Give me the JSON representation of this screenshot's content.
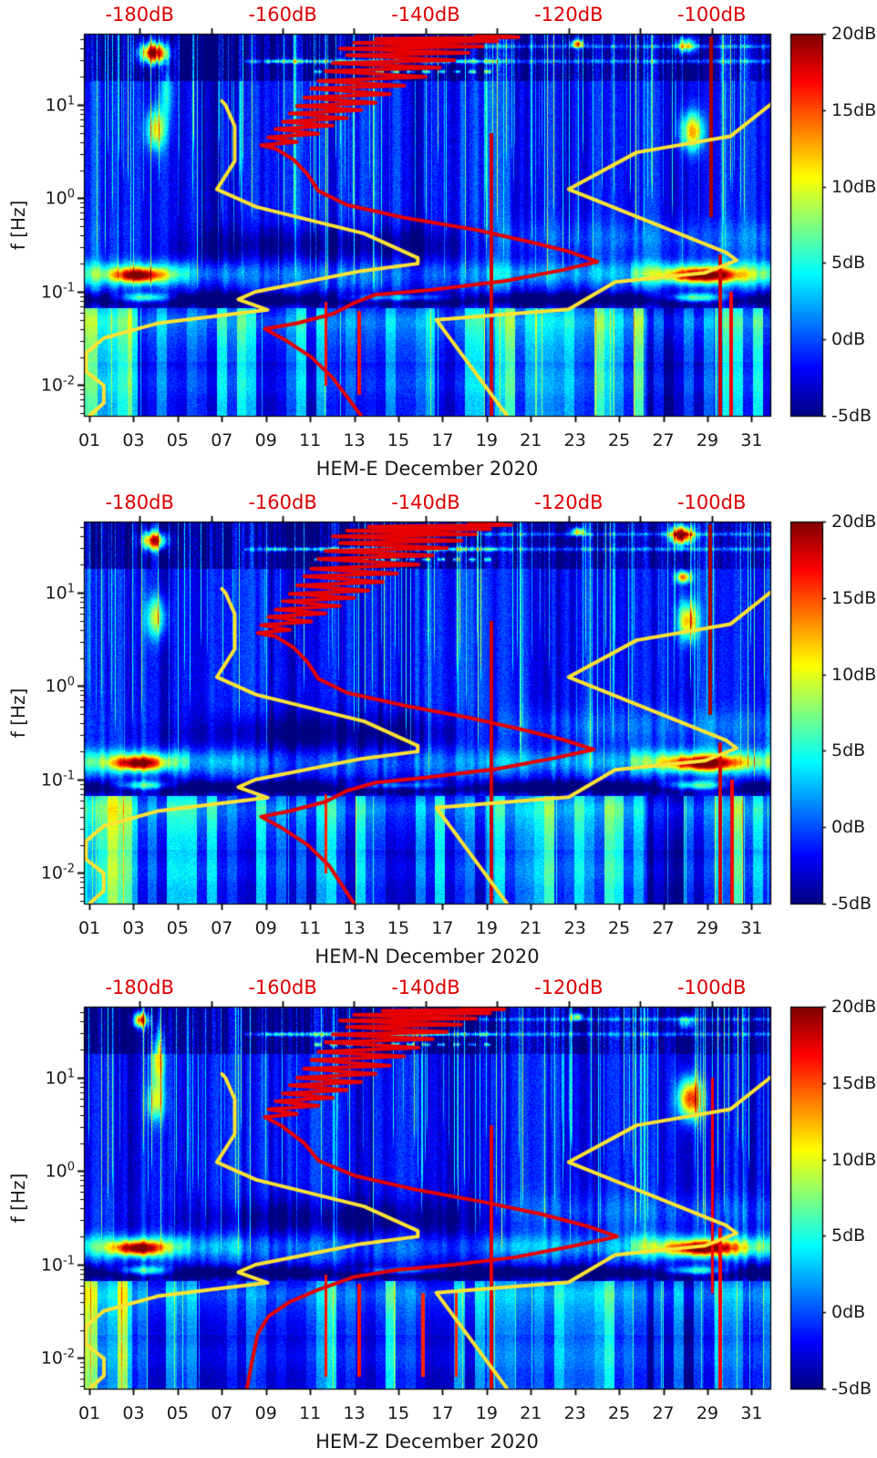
{
  "page": {
    "background": "#ffffff"
  },
  "chart_data": {
    "type": "heatmap",
    "subtype": "spectrogram-with-noise-model-overlays",
    "palette": "jet",
    "x_axis": {
      "tick_labels": [
        "01",
        "03",
        "05",
        "07",
        "09",
        "11",
        "13",
        "15",
        "17",
        "19",
        "21",
        "23",
        "25",
        "27",
        "29",
        "31"
      ],
      "tick_days": [
        1,
        3,
        5,
        7,
        9,
        11,
        13,
        15,
        17,
        19,
        21,
        23,
        25,
        27,
        29,
        31
      ],
      "domain_days": [
        0.75,
        31.85
      ]
    },
    "y_axis": {
      "label": "f [Hz]",
      "scale": "log",
      "domain_hz": [
        0.0047,
        57.7
      ],
      "decade_labels": [
        {
          "base": "10",
          "exp": "1",
          "log": 1
        },
        {
          "base": "10",
          "exp": "0",
          "log": 0
        },
        {
          "base": "10",
          "exp": "-1",
          "log": -1
        },
        {
          "base": "10",
          "exp": "-2",
          "log": -2
        }
      ]
    },
    "top_axis": {
      "labels": [
        "-180dB",
        "-160dB",
        "-140dB",
        "-120dB",
        "-100dB"
      ],
      "values": [
        -180,
        -160,
        -140,
        -120,
        -100
      ],
      "minor_tick_step_db": 10,
      "domain_db": [
        -187.8,
        -91.8
      ],
      "color": "#dd0000"
    },
    "colorbar": {
      "labels": [
        "20dB",
        "15dB",
        "10dB",
        "5dB",
        "0dB",
        "-5dB"
      ],
      "values": [
        20,
        15,
        10,
        5,
        0,
        -5
      ],
      "domain_db": [
        -5,
        20
      ]
    },
    "colors": {
      "median_curve": "#e60000",
      "reference_curves": "#fde334",
      "tick_text": "#1a1a1a",
      "top_axis_text": "#dd0000"
    },
    "reference_curves": {
      "nlnm_f_db": [
        [
          11,
          -168.5
        ],
        [
          10,
          -168
        ],
        [
          5.9,
          -166.7
        ],
        [
          2.5,
          -166.7
        ],
        [
          1.25,
          -169.2
        ],
        [
          0.81,
          -163.7
        ],
        [
          0.42,
          -148.6
        ],
        [
          0.23,
          -141.1
        ],
        [
          0.2,
          -141.1
        ],
        [
          0.167,
          -149
        ],
        [
          0.1,
          -163.8
        ],
        [
          0.083,
          -166.2
        ],
        [
          0.064,
          -162.1
        ],
        [
          0.046,
          -177.5
        ],
        [
          0.032,
          -185
        ],
        [
          0.022,
          -187.5
        ],
        [
          0.014,
          -187.5
        ],
        [
          0.0099,
          -185
        ],
        [
          0.0065,
          -185
        ],
        [
          0.0047,
          -187
        ]
      ],
      "nhnm_f_db": [
        [
          10.5,
          -91.5
        ],
        [
          4.6,
          -97.4
        ],
        [
          3.1,
          -110.5
        ],
        [
          1.25,
          -120
        ],
        [
          0.263,
          -98
        ],
        [
          0.217,
          -96.5
        ],
        [
          0.159,
          -101
        ],
        [
          0.127,
          -113.5
        ],
        [
          0.065,
          -120
        ],
        [
          0.05,
          -138.5
        ],
        [
          0.0047,
          -128.6
        ]
      ]
    },
    "panels": [
      {
        "title": "HEM-E December 2020",
        "seed": 11,
        "median_psd_f_db": [
          [
            57,
            -133
          ],
          [
            53,
            -127
          ],
          [
            51,
            -147
          ],
          [
            48,
            -130
          ],
          [
            46,
            -150
          ],
          [
            42,
            -132
          ],
          [
            40,
            -152
          ],
          [
            36,
            -134
          ],
          [
            34,
            -151
          ],
          [
            30,
            -136
          ],
          [
            28,
            -153
          ],
          [
            25,
            -138
          ],
          [
            23,
            -154
          ],
          [
            20,
            -140
          ],
          [
            18,
            -155
          ],
          [
            16,
            -143
          ],
          [
            15,
            -156
          ],
          [
            13,
            -145
          ],
          [
            12,
            -157
          ],
          [
            10.5,
            -147
          ],
          [
            9.7,
            -158
          ],
          [
            8.8,
            -149
          ],
          [
            8.1,
            -159
          ],
          [
            7.2,
            -151
          ],
          [
            6.6,
            -160
          ],
          [
            6.0,
            -153
          ],
          [
            5.5,
            -161
          ],
          [
            4.9,
            -155
          ],
          [
            4.5,
            -162
          ],
          [
            4.0,
            -158
          ],
          [
            3.7,
            -163
          ],
          [
            3.4,
            -161
          ],
          [
            2.6,
            -158.5
          ],
          [
            1.8,
            -156.5
          ],
          [
            1.2,
            -155
          ],
          [
            0.85,
            -151
          ],
          [
            0.62,
            -143
          ],
          [
            0.46,
            -133
          ],
          [
            0.35,
            -126
          ],
          [
            0.27,
            -120
          ],
          [
            0.21,
            -116
          ],
          [
            0.17,
            -121
          ],
          [
            0.13,
            -129
          ],
          [
            0.105,
            -139
          ],
          [
            0.093,
            -147
          ],
          [
            0.076,
            -150
          ],
          [
            0.058,
            -153
          ],
          [
            0.046,
            -158
          ],
          [
            0.04,
            -162.5
          ],
          [
            0.03,
            -159.5
          ],
          [
            0.02,
            -156
          ],
          [
            0.012,
            -153
          ],
          [
            0.0047,
            -149
          ]
        ],
        "blobs_day_logf_sd_slf_amp": [
          [
            3.9,
            1.56,
            0.6,
            0.11,
            26
          ],
          [
            4.0,
            0.74,
            0.45,
            0.22,
            12
          ],
          [
            4.5,
            1.15,
            0.3,
            0.3,
            6
          ],
          [
            28.3,
            0.72,
            0.5,
            0.2,
            15
          ],
          [
            28.0,
            1.64,
            0.45,
            0.09,
            15
          ],
          [
            23.1,
            1.66,
            0.3,
            0.04,
            17
          ],
          [
            3.2,
            -0.82,
            1.1,
            0.075,
            17
          ],
          [
            28.8,
            -0.82,
            1.5,
            0.075,
            18
          ],
          [
            3.5,
            -1.06,
            1.2,
            0.05,
            13
          ],
          [
            28.5,
            -1.06,
            1.4,
            0.05,
            14
          ],
          [
            15,
            -1.06,
            2.5,
            0.04,
            9
          ]
        ],
        "red_vlines_day_lf1_lf2_amp": [
          [
            19.2,
            -2.33,
            0.7,
            5
          ],
          [
            29.15,
            -0.2,
            1.74,
            6
          ],
          [
            29.55,
            -2.33,
            -0.6,
            5
          ],
          [
            30.05,
            -2.33,
            -1.0,
            4
          ],
          [
            11.7,
            -2.0,
            -1.1,
            3.5
          ],
          [
            13.2,
            -2.1,
            -1.2,
            3.5
          ]
        ]
      },
      {
        "title": "HEM-N December 2020",
        "seed": 52,
        "median_psd_f_db": [
          [
            57,
            -134
          ],
          [
            53,
            -128
          ],
          [
            51,
            -148
          ],
          [
            48,
            -131
          ],
          [
            46,
            -151
          ],
          [
            42,
            -133
          ],
          [
            40,
            -153
          ],
          [
            36,
            -135
          ],
          [
            34,
            -152
          ],
          [
            30,
            -137
          ],
          [
            28,
            -154
          ],
          [
            25,
            -139
          ],
          [
            23,
            -155
          ],
          [
            20,
            -141
          ],
          [
            18,
            -156
          ],
          [
            16,
            -144
          ],
          [
            15,
            -157
          ],
          [
            13,
            -146
          ],
          [
            12,
            -158
          ],
          [
            10.5,
            -148
          ],
          [
            9.7,
            -159
          ],
          [
            8.8,
            -150
          ],
          [
            8.1,
            -160
          ],
          [
            7.2,
            -152
          ],
          [
            6.6,
            -161
          ],
          [
            6.0,
            -154
          ],
          [
            5.5,
            -162
          ],
          [
            4.9,
            -156
          ],
          [
            4.5,
            -163
          ],
          [
            4.0,
            -159
          ],
          [
            3.7,
            -163.5
          ],
          [
            3.4,
            -161
          ],
          [
            2.6,
            -158.5
          ],
          [
            1.8,
            -156.5
          ],
          [
            1.2,
            -155
          ],
          [
            0.85,
            -151
          ],
          [
            0.62,
            -143
          ],
          [
            0.46,
            -134
          ],
          [
            0.35,
            -127
          ],
          [
            0.27,
            -121
          ],
          [
            0.21,
            -116.5
          ],
          [
            0.17,
            -122
          ],
          [
            0.13,
            -130
          ],
          [
            0.105,
            -140
          ],
          [
            0.093,
            -147
          ],
          [
            0.076,
            -151
          ],
          [
            0.058,
            -154
          ],
          [
            0.046,
            -159
          ],
          [
            0.04,
            -163
          ],
          [
            0.03,
            -160
          ],
          [
            0.02,
            -156.5
          ],
          [
            0.012,
            -153.5
          ],
          [
            0.0047,
            -150
          ]
        ],
        "blobs_day_logf_sd_slf_amp": [
          [
            3.9,
            1.56,
            0.55,
            0.1,
            22
          ],
          [
            4.0,
            0.74,
            0.45,
            0.22,
            11
          ],
          [
            27.8,
            1.62,
            0.5,
            0.1,
            26
          ],
          [
            27.9,
            1.17,
            0.35,
            0.06,
            16
          ],
          [
            28.1,
            0.7,
            0.45,
            0.2,
            15
          ],
          [
            23.1,
            1.66,
            0.3,
            0.04,
            15
          ],
          [
            3.2,
            -0.82,
            1.1,
            0.075,
            17
          ],
          [
            28.8,
            -0.82,
            1.5,
            0.075,
            18
          ],
          [
            3.5,
            -1.06,
            1.2,
            0.05,
            13
          ],
          [
            28.5,
            -1.06,
            1.4,
            0.05,
            13
          ],
          [
            15,
            -1.06,
            2.5,
            0.04,
            8
          ]
        ],
        "red_vlines_day_lf1_lf2_amp": [
          [
            19.2,
            -2.33,
            0.7,
            5
          ],
          [
            29.1,
            -0.3,
            1.74,
            6
          ],
          [
            29.55,
            -2.33,
            -0.6,
            5
          ],
          [
            30.1,
            -2.33,
            -1.0,
            4
          ],
          [
            11.7,
            -2.0,
            -1.15,
            3
          ]
        ]
      },
      {
        "title": "HEM-Z December 2020",
        "seed": 93,
        "median_psd_f_db": [
          [
            57,
            -135
          ],
          [
            54,
            -129
          ],
          [
            52,
            -146
          ],
          [
            49,
            -131
          ],
          [
            47,
            -150
          ],
          [
            43,
            -133
          ],
          [
            41,
            -152
          ],
          [
            37,
            -135
          ],
          [
            35,
            -151
          ],
          [
            31,
            -137
          ],
          [
            29,
            -153
          ],
          [
            26,
            -139
          ],
          [
            24,
            -154
          ],
          [
            21,
            -141
          ],
          [
            19,
            -155
          ],
          [
            17,
            -143
          ],
          [
            15.5,
            -156
          ],
          [
            13.5,
            -145
          ],
          [
            12.5,
            -157
          ],
          [
            11,
            -147
          ],
          [
            10,
            -158
          ],
          [
            9,
            -149
          ],
          [
            8.3,
            -159
          ],
          [
            7.4,
            -151
          ],
          [
            6.8,
            -160
          ],
          [
            6.1,
            -153
          ],
          [
            5.6,
            -161
          ],
          [
            5.0,
            -155
          ],
          [
            4.6,
            -162
          ],
          [
            4.1,
            -158
          ],
          [
            3.8,
            -162.5
          ],
          [
            3.0,
            -160
          ],
          [
            2.0,
            -157
          ],
          [
            1.3,
            -155
          ],
          [
            0.9,
            -150
          ],
          [
            0.65,
            -142
          ],
          [
            0.47,
            -132
          ],
          [
            0.35,
            -124
          ],
          [
            0.26,
            -117.5
          ],
          [
            0.2,
            -113.2
          ],
          [
            0.155,
            -120
          ],
          [
            0.12,
            -127.5
          ],
          [
            0.1,
            -136
          ],
          [
            0.088,
            -144
          ],
          [
            0.074,
            -150
          ],
          [
            0.054,
            -155
          ],
          [
            0.04,
            -159
          ],
          [
            0.028,
            -162
          ],
          [
            0.018,
            -163.5
          ],
          [
            0.01,
            -164.2
          ],
          [
            0.0047,
            -165
          ]
        ],
        "blobs_day_logf_sd_slf_amp": [
          [
            3.3,
            1.62,
            0.35,
            0.08,
            20
          ],
          [
            4.1,
            1.2,
            0.3,
            0.32,
            13
          ],
          [
            4.0,
            0.74,
            0.4,
            0.2,
            10
          ],
          [
            28.2,
            0.78,
            0.55,
            0.22,
            19
          ],
          [
            28.0,
            1.6,
            0.4,
            0.08,
            10
          ],
          [
            23.1,
            1.66,
            0.3,
            0.04,
            13
          ],
          [
            3.2,
            -0.82,
            1.1,
            0.075,
            18
          ],
          [
            28.8,
            -0.82,
            1.5,
            0.075,
            19
          ],
          [
            3.5,
            -1.06,
            1.2,
            0.05,
            13
          ],
          [
            28.5,
            -1.06,
            1.4,
            0.05,
            13
          ],
          [
            15,
            -1.06,
            2.5,
            0.04,
            8
          ]
        ],
        "red_vlines_day_lf1_lf2_amp": [
          [
            19.2,
            -2.33,
            0.5,
            4.5
          ],
          [
            29.2,
            -1.3,
            1.0,
            4
          ],
          [
            29.55,
            -2.33,
            -0.6,
            4
          ],
          [
            11.7,
            -2.2,
            -1.1,
            3.5
          ],
          [
            13.2,
            -2.2,
            -1.2,
            3.5
          ],
          [
            16.1,
            -2.2,
            -1.3,
            3
          ],
          [
            17.6,
            -2.2,
            -1.3,
            3
          ]
        ]
      }
    ]
  }
}
